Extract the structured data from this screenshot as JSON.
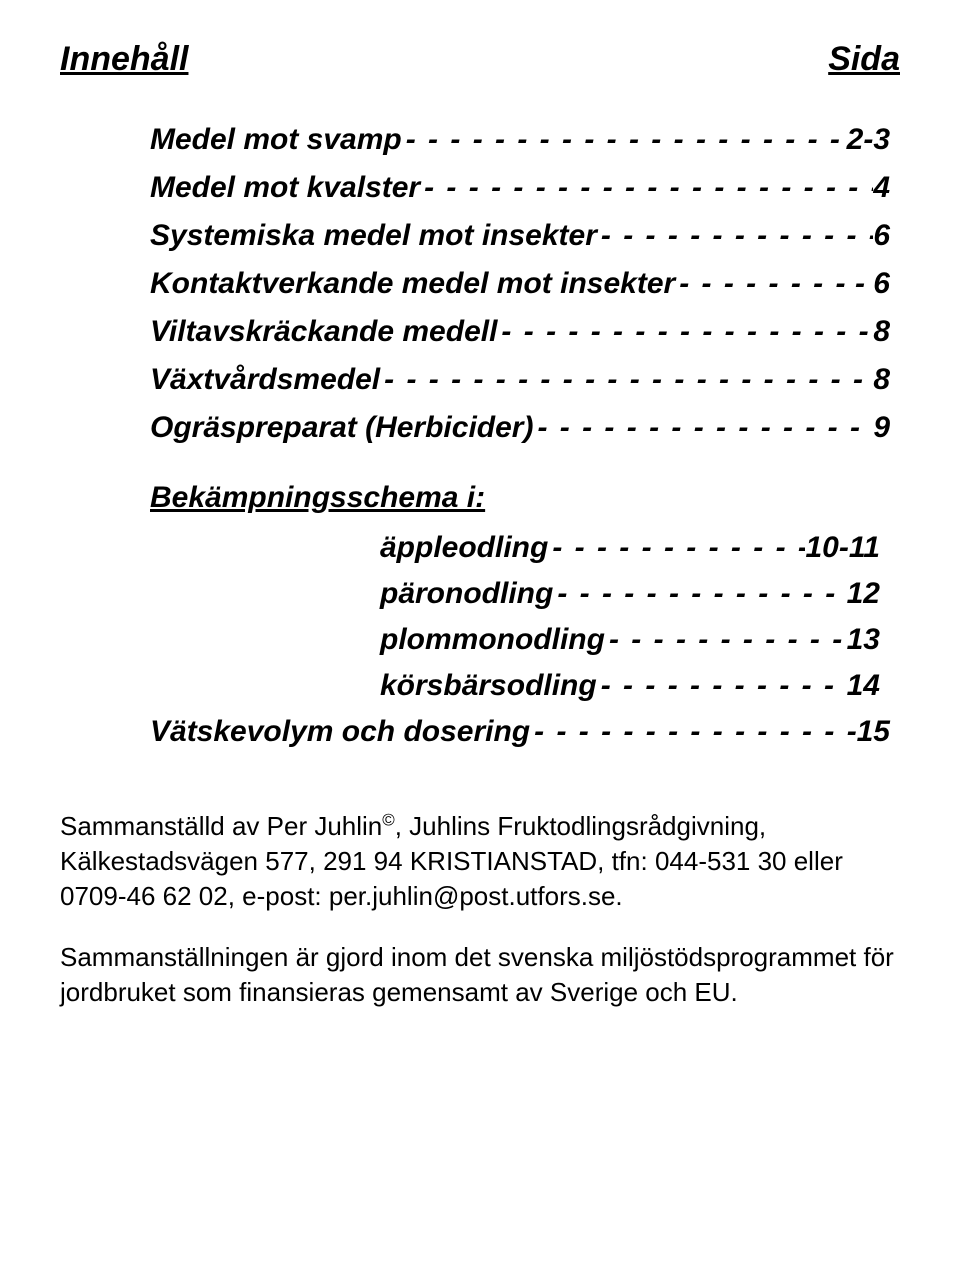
{
  "header": {
    "left": "Innehåll",
    "right": "Sida"
  },
  "toc": [
    {
      "label": "Medel mot svamp",
      "page": "2-3"
    },
    {
      "label": "Medel mot kvalster",
      "page": "4"
    },
    {
      "label": "Systemiska medel mot insekter",
      "page": "6"
    },
    {
      "label": "Kontaktverkande medel mot insekter",
      "page": "- 6"
    },
    {
      "label": "Viltavskräckande medell",
      "page": "8"
    },
    {
      "label": "Växtvårdsmedel",
      "page": "8"
    },
    {
      "label": "Ogräspreparat (Herbicider)",
      "page": "9"
    }
  ],
  "subheading": "Bekämpningsschema i:",
  "subitems": [
    {
      "label": "äppleodling",
      "page": "10-11"
    },
    {
      "label": "päronodling",
      "page": "12"
    },
    {
      "label": "plommonodling",
      "page": "13"
    },
    {
      "label": "körsbärsodling",
      "page": "14"
    }
  ],
  "lastline": {
    "label": "Vätskevolym och dosering",
    "page": "15"
  },
  "footer": {
    "p1_prefix": "Sammanställd av Per Juhlin",
    "p1_rest": ", Juhlins Fruktodlingsrådgivning, Kälkestadsvägen 577, 291 94 KRISTIANSTAD, tfn: 044-531 30 eller 0709-46 62 02, e-post: per.juhlin@post.utfors.se.",
    "p2": "Sammanställningen är gjord inom det svenska miljöstödsprogrammet för jordbruket som finansieras gemensamt av Sverige och EU."
  },
  "dashfill": "- - - - - - - - - - - - - - - - - - - - - - - - - - - - - - - - - - - - - - - - - - - - - - - - - -"
}
